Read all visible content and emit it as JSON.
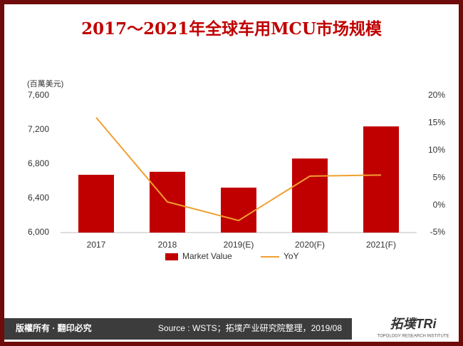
{
  "chart_data": {
    "type": "bar-line",
    "title": "2017～2021年全球车用MCU市场规模",
    "y_unit_label": "(百萬美元)",
    "categories": [
      "2017",
      "2018",
      "2019(E)",
      "2020(F)",
      "2021(F)"
    ],
    "series": [
      {
        "name": "Market Value",
        "type": "bar",
        "color": "#c00000",
        "values": [
          6675,
          6710,
          6525,
          6865,
          7240
        ]
      },
      {
        "name": "YoY",
        "type": "line",
        "axis": "y2",
        "color": "#f0a030",
        "values": [
          16.0,
          0.6,
          -2.8,
          5.3,
          5.5
        ]
      }
    ],
    "ylim": [
      6000,
      7600
    ],
    "yticks": [
      {
        "value": 6000,
        "label": "6,000"
      },
      {
        "value": 6400,
        "label": "6,400"
      },
      {
        "value": 6800,
        "label": "6,800"
      },
      {
        "value": 7200,
        "label": "7,200"
      },
      {
        "value": 7600,
        "label": "7,600"
      }
    ],
    "y2lim": [
      -5,
      20
    ],
    "y2ticks": [
      {
        "value": -5,
        "label": "-5%"
      },
      {
        "value": 0,
        "label": "0%"
      },
      {
        "value": 5,
        "label": "5%"
      },
      {
        "value": 10,
        "label": "10%"
      },
      {
        "value": 15,
        "label": "15%"
      },
      {
        "value": 20,
        "label": "20%"
      }
    ],
    "legend": "bottom"
  },
  "footer": {
    "rights": "版權所有 · 翻印必究",
    "source": "Source : WSTS；拓墣产业研究院整理，2019/08",
    "logo": "拓墣TRi",
    "logo_sub": "TOPOLOGY RESEARCH INSTITUTE"
  }
}
